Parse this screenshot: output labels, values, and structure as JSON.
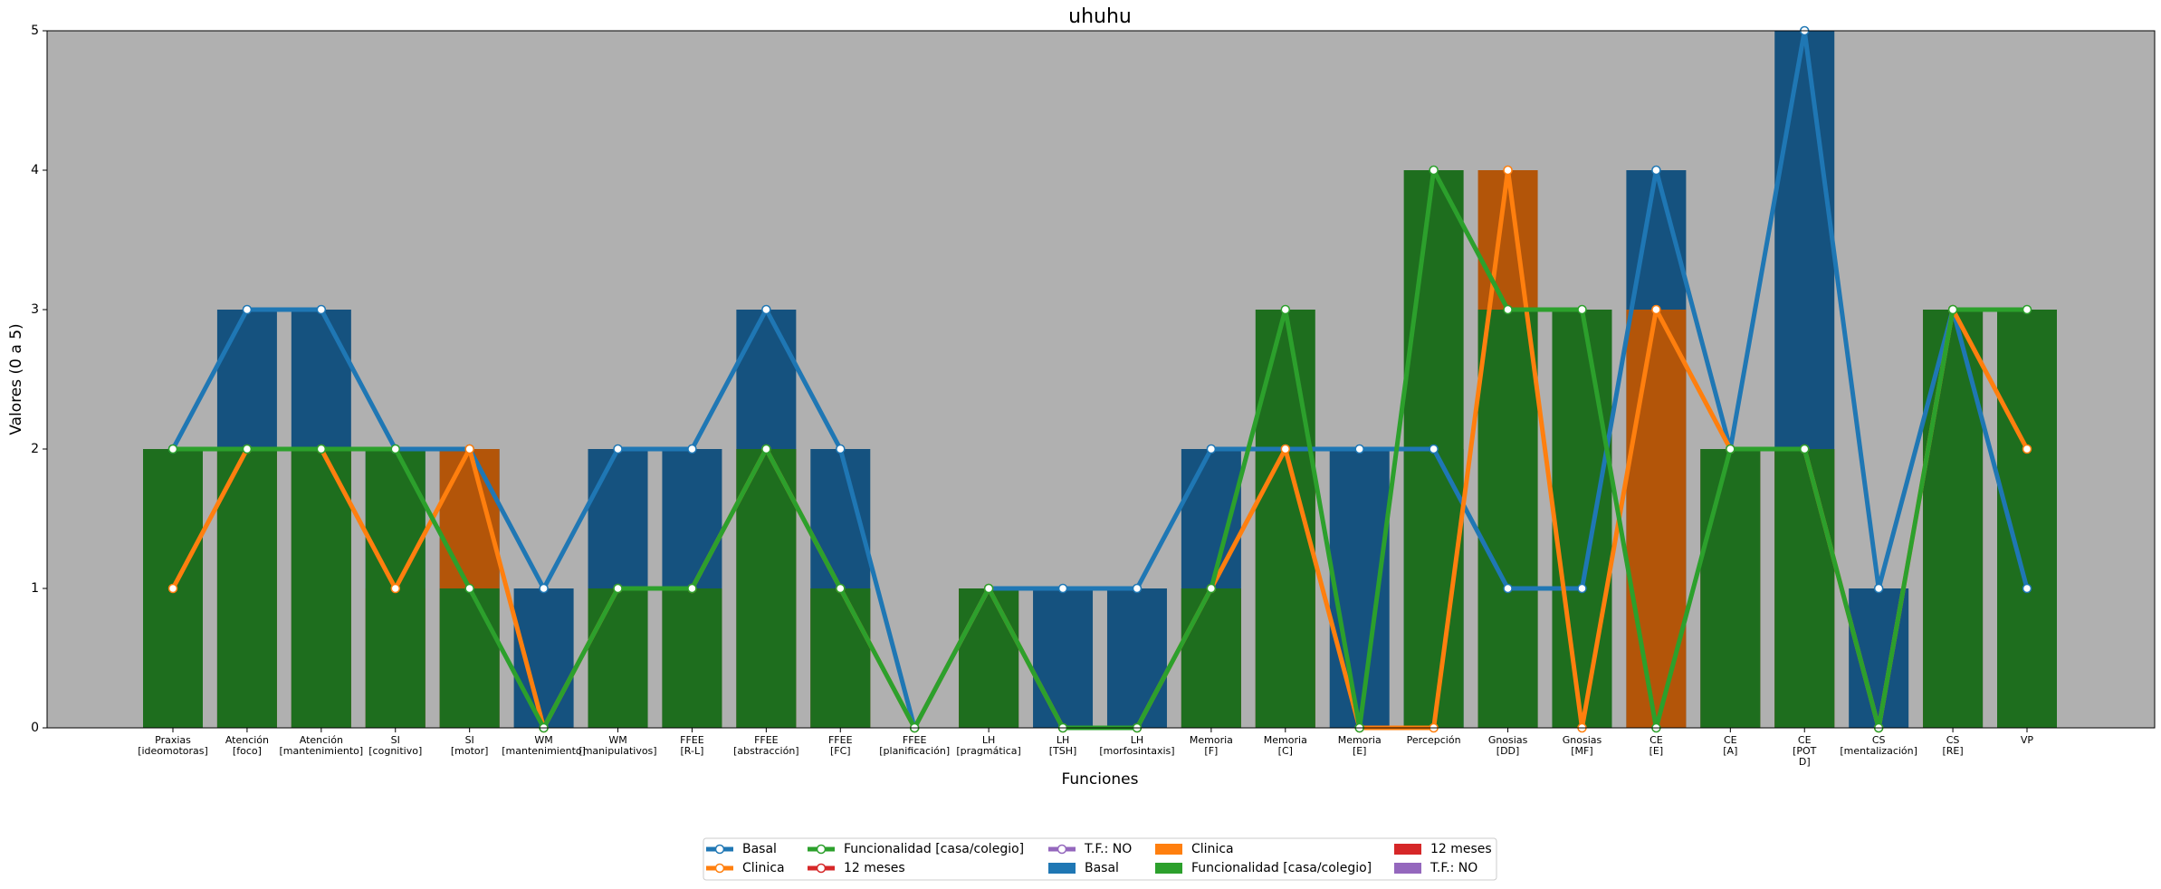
{
  "chart_data": {
    "type": "bar_line",
    "title": "uhuhu",
    "xlabel": "Funciones",
    "ylabel": "Valores (0 a 5)",
    "categories": [
      "Praxias\n[ideomotoras]",
      "Atención\n[foco]",
      "Atención\n[mantenimiento]",
      "SI\n[cognitivo]",
      "SI\n[motor]",
      "WM\n[mantenimiento]",
      "WM\n[manipulativos]",
      "FFEE\n[R-L]",
      "FFEE\n[abstracción]",
      "FFEE\n[FC]",
      "FFEE\n[planificación]",
      "LH\n[pragmática]",
      "LH\n[TSH]",
      "LH\n[morfosintaxis]",
      "Memoria\n[F]",
      "Memoria\n[C]",
      "Memoria\n[E]",
      "Percepción",
      "Gnosias\n[DD]",
      "Gnosias\n[MF]",
      "CE\n[E]",
      "CE\n[A]",
      "CE\n[POT\nD]",
      "CS\n[mentalización]",
      "CS\n[RE]",
      "VP"
    ],
    "series": [
      {
        "name": "Basal",
        "color": "#1f77b4",
        "bar_color": "#15527f",
        "values": [
          2,
          3,
          3,
          2,
          2,
          1,
          2,
          2,
          3,
          2,
          0,
          1,
          1,
          1,
          2,
          2,
          2,
          2,
          1,
          1,
          4,
          2,
          5,
          1,
          3,
          1
        ]
      },
      {
        "name": "Clinica",
        "color": "#ff7f0e",
        "bar_color": "#b35509",
        "values": [
          1,
          2,
          2,
          1,
          2,
          0,
          1,
          1,
          2,
          1,
          0,
          1,
          0,
          0,
          1,
          2,
          0,
          0,
          4,
          0,
          3,
          2,
          2,
          0,
          3,
          2
        ]
      },
      {
        "name": "Funcionalidad [casa/colegio]",
        "color": "#2ca02c",
        "bar_color": "#1e6e1e",
        "values": [
          2,
          2,
          2,
          2,
          1,
          0,
          1,
          1,
          2,
          1,
          0,
          1,
          0,
          0,
          1,
          3,
          0,
          4,
          3,
          3,
          0,
          2,
          2,
          0,
          3,
          3
        ]
      },
      {
        "name": "12 meses",
        "color": "#d62728",
        "bar_color": "#d62728",
        "values": [
          null,
          null,
          null,
          null,
          null,
          null,
          null,
          null,
          null,
          null,
          null,
          null,
          null,
          null,
          null,
          null,
          null,
          null,
          null,
          null,
          null,
          null,
          null,
          null,
          null,
          null
        ]
      },
      {
        "name": "T.F.: NO",
        "color": "#9467bd",
        "bar_color": "#9467bd",
        "values": [
          null,
          null,
          null,
          null,
          null,
          null,
          null,
          null,
          null,
          null,
          null,
          null,
          null,
          null,
          null,
          null,
          null,
          null,
          null,
          null,
          null,
          null,
          null,
          null,
          null,
          null
        ]
      }
    ],
    "ylim": [
      0,
      5
    ],
    "yticks": [
      0,
      1,
      2,
      3,
      4,
      5
    ],
    "background": "#b0b0b0",
    "legend": "lower center"
  }
}
